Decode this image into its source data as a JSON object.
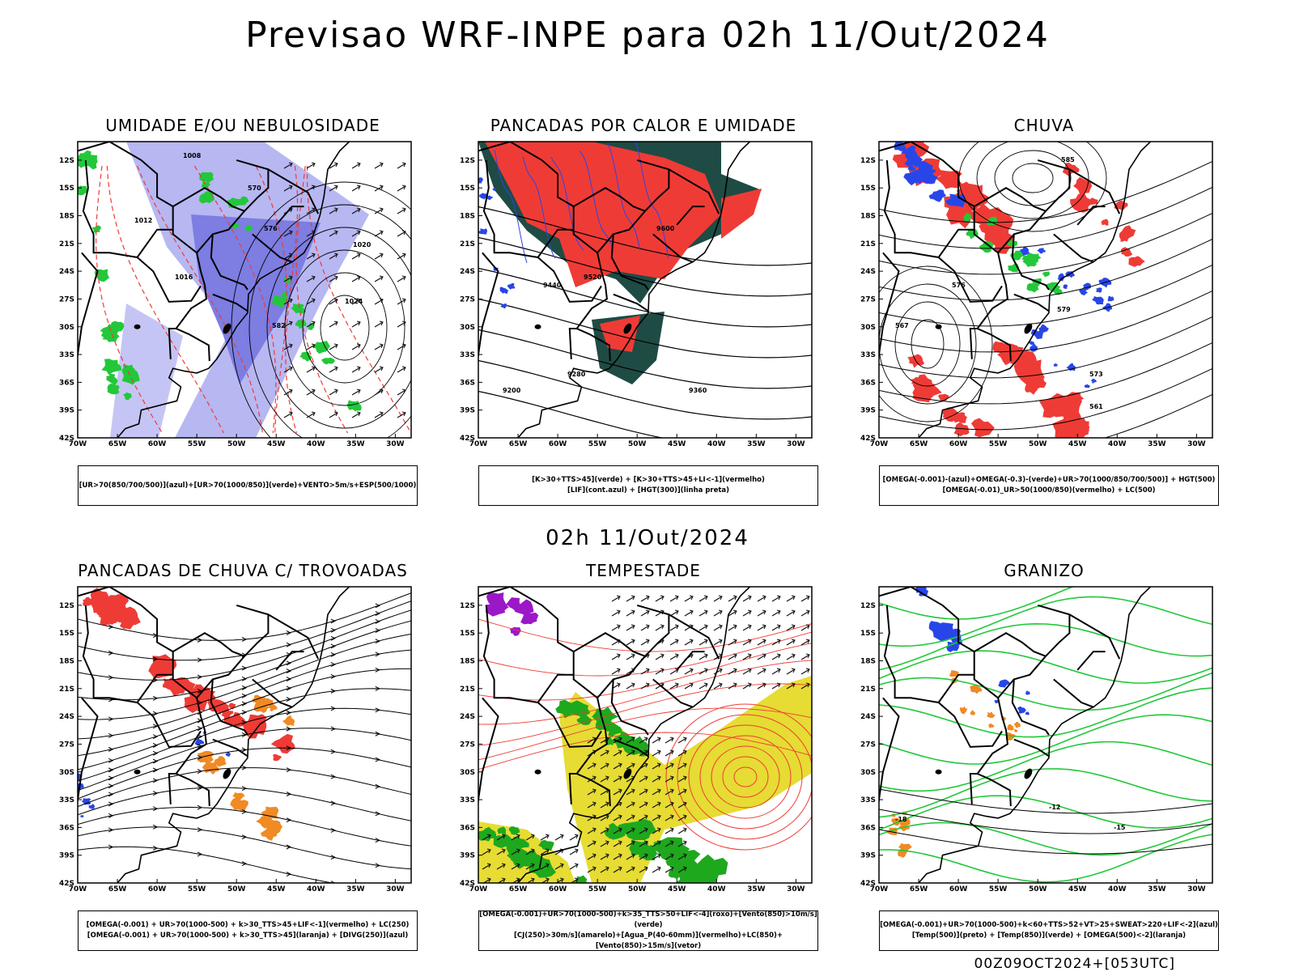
{
  "header": {
    "title": "Previsao WRF-INPE  para 02h 11/Out/2024",
    "mid_title": "02h 11/Out/2024",
    "footer": "00Z09OCT2024+[053UTC]"
  },
  "axes": {
    "lat_labels": [
      "12S",
      "15S",
      "18S",
      "21S",
      "24S",
      "27S",
      "30S",
      "33S",
      "36S",
      "39S",
      "42S"
    ],
    "lon_labels": [
      "70W",
      "65W",
      "60W",
      "55W",
      "50W",
      "45W",
      "40W",
      "35W",
      "30W"
    ]
  },
  "panels": [
    {
      "title": "UMIDADE E/OU NEBULOSIDADE",
      "legend": [
        "[UR>70(850/700/500)](azul)+[UR>70(1000/850)](verde)+VENTO>5m/s+ESP(500/1000)"
      ],
      "labels": [
        "1008",
        "1016",
        "1012",
        "1020",
        "1024",
        "576",
        "582",
        "570"
      ]
    },
    {
      "title": "PANCADAS POR CALOR E UMIDADE",
      "legend": [
        "[K>30+TTS>45](verde) + [K>30+TTS>45+LI<-1](vermelho)",
        "[LIF](cont.azul) + [HGT(300)](linha preta)"
      ],
      "labels": [
        "9600",
        "9520",
        "9440",
        "9360",
        "9280",
        "9200"
      ]
    },
    {
      "title": "CHUVA",
      "legend": [
        "[OMEGA(-0.001)-(azul)+OMEGA(-0.3)-(verde)+UR>70(1000/850/700/500)] + HGT(500)",
        "[OMEGA(-0.01)_UR>50(1000/850)(vermelho) + LC(500)"
      ],
      "labels": [
        "585",
        "579",
        "573",
        "567",
        "561",
        "576"
      ]
    },
    {
      "title": "PANCADAS DE CHUVA C/ TROVOADAS",
      "legend": [
        "[OMEGA(-0.001) + UR>70(1000-500) + k>30_TTS>45+LIF<-1](vermelho) + LC(250)",
        "[OMEGA(-0.001) + UR>70(1000-500) + k>30_TTS>45](laranja) + [DIVG(250)](azul)"
      ],
      "labels": []
    },
    {
      "title": "TEMPESTADE",
      "legend": [
        "[OMEGA(-0.001)+UR>70(1000-500)+k>35_TTS>50+LIF<-4](roxo)+[Vento(850)>10m/s](verde)",
        "[CJ(250)>30m/s](amarelo)+[Agua_P(40-60mm)](vermelho)+LC(850)+[Vento(850)>15m/s](vetor)"
      ],
      "labels": []
    },
    {
      "title": "GRANIZO",
      "legend": [
        "[OMEGA(-0.001)+UR>70(1000-500)+k<60+TTS>52+VT>25+SWEAT>220+LIF<-2](azul)",
        "[Temp(500)](preto) + [Temp(850)](verde) + [OMEGA(500)<-2](laranja)"
      ],
      "labels": [
        "-18",
        "-12",
        "-15"
      ]
    }
  ],
  "colors": {
    "red": "#ef3b36",
    "blue": "#2846e8",
    "green": "#22c83a",
    "lavender": "#b7b7f2",
    "darkteal": "#1f4b45",
    "yellow": "#e6dc33",
    "purple": "#9b18c8",
    "orange": "#f08a24",
    "darkgreen": "#1ea81e"
  }
}
